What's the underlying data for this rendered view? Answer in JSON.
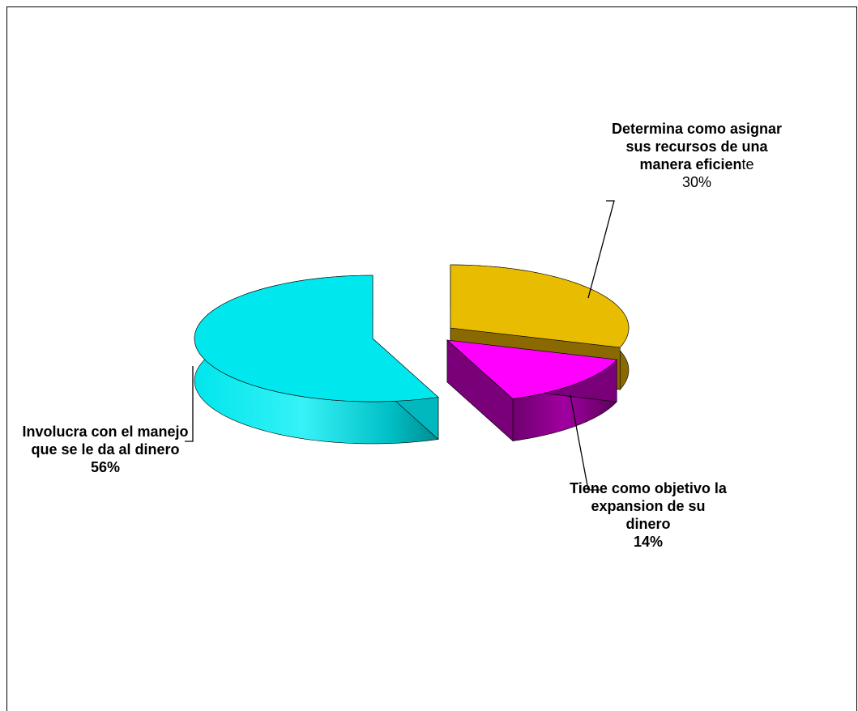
{
  "chart_data": {
    "type": "pie",
    "style": "3d-exploded",
    "slices": [
      {
        "key": "involucra",
        "label": "Involucra con el manejo que se le da al dinero",
        "value": 56,
        "value_label": "56%",
        "color": "#00E8EE",
        "side_color": "#00B8BE"
      },
      {
        "key": "determina",
        "label": "Determina como asignar sus recursos de una manera eficiente",
        "value": 30,
        "value_label": "30%",
        "color": "#E8BC00",
        "side_color": "#8A6A00"
      },
      {
        "key": "tiene",
        "label": "Tiene como objetivo la expansion de su dinero",
        "value": 14,
        "value_label": "14%",
        "color": "#FF00FF",
        "side_color": "#7A007A"
      }
    ],
    "legend": "none",
    "data_labels": "outside-with-leader-lines"
  }
}
